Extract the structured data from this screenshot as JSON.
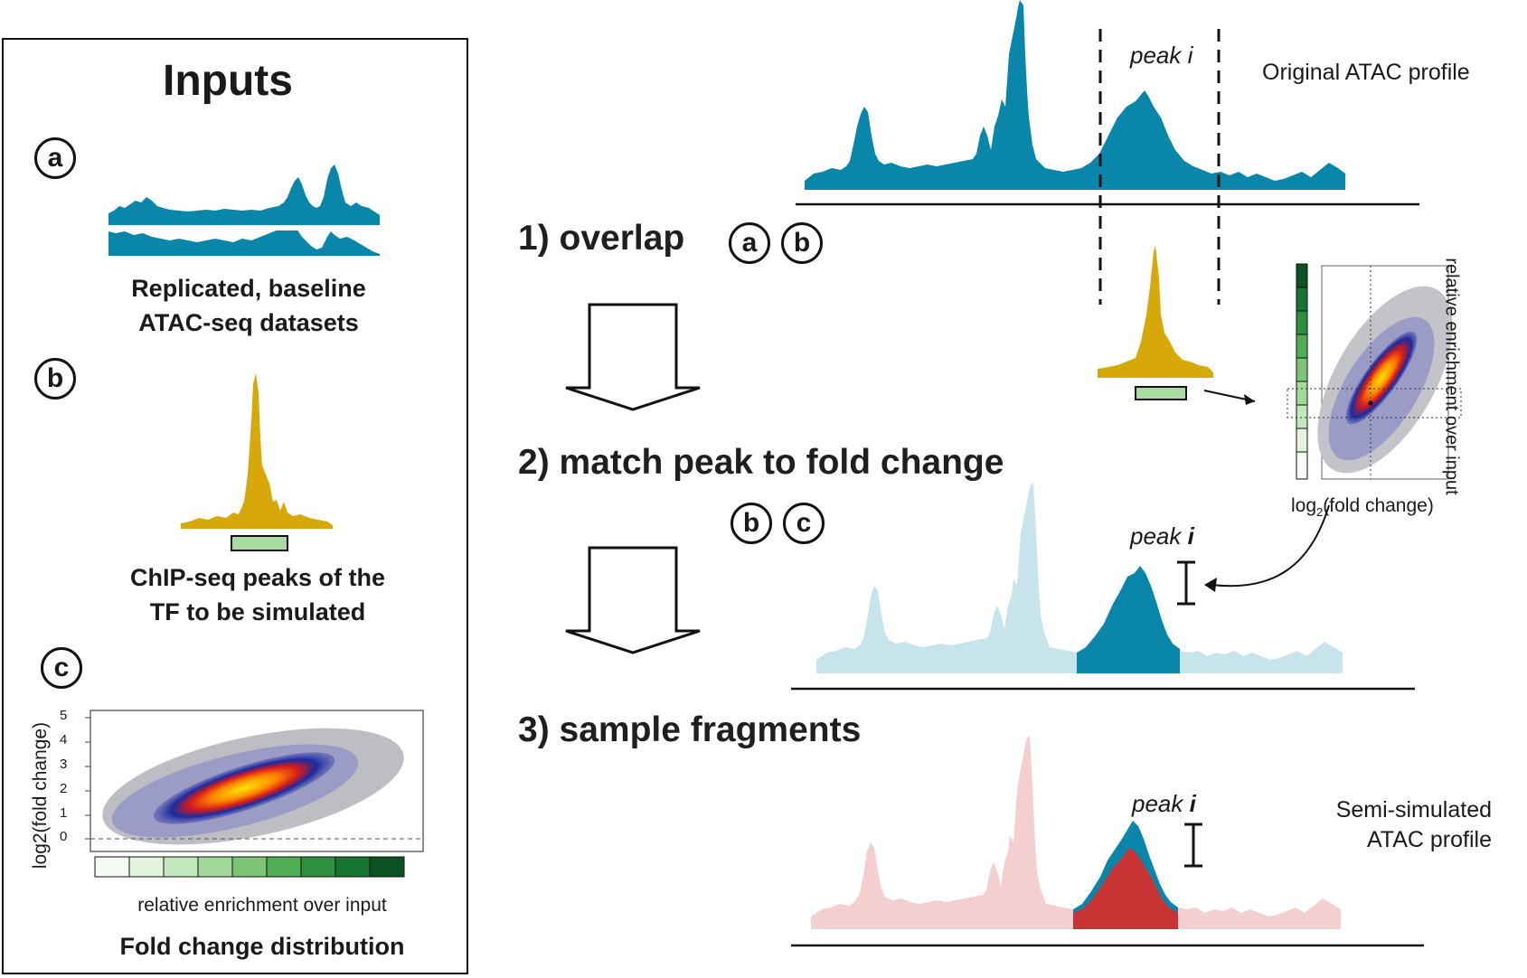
{
  "inputs": {
    "title": "Inputs",
    "a": {
      "badge": "a",
      "caption_line1": "Replicated, baseline",
      "caption_line2": "ATAC-seq datasets"
    },
    "b": {
      "badge": "b",
      "caption_line1": "ChIP-seq peaks of the",
      "caption_line2": "TF to be simulated"
    },
    "c": {
      "badge": "c",
      "caption": "Fold change distribution",
      "xlabel": "relative enrichment over input",
      "ylabel": "log2(fold change)",
      "yticks": [
        "0",
        "1",
        "2",
        "3",
        "4",
        "5"
      ]
    }
  },
  "steps": {
    "step1": "1) overlap",
    "step2": "2) match peak to fold change",
    "step3": "3) sample fragments",
    "step1_badges": [
      "a",
      "b"
    ],
    "step2_badges": [
      "b",
      "c"
    ]
  },
  "profiles": {
    "original_label": "Original ATAC profile",
    "peak_label": "peak i",
    "peak_prefix": "peak",
    "peak_suffix": "i",
    "semi_line1": "Semi-simulated",
    "semi_line2": "ATAC profile"
  },
  "inset": {
    "xlabel_pre": "log",
    "xlabel_sub": "2",
    "xlabel_post": "(fold change)",
    "ylabel": "relative enrichment over input"
  },
  "colors": {
    "atac_blue": "#0a86aa",
    "chip_gold": "#d6a80a",
    "light_blue": "#c7e4ec",
    "light_red": "#f4cfcf",
    "red": "#c83434",
    "green_bar": "#a8dba0"
  }
}
